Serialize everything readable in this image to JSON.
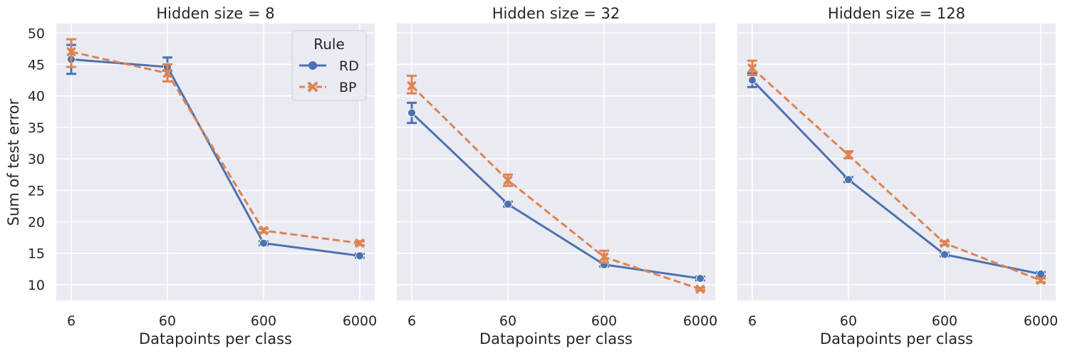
{
  "chart_data": {
    "type": "line",
    "ylabel": "Sum of test error",
    "xlabel": "Datapoints per class",
    "x_categories": [
      "6",
      "60",
      "600",
      "6000"
    ],
    "y_ticks": [
      10,
      15,
      20,
      25,
      30,
      35,
      40,
      45,
      50
    ],
    "ylim": [
      7.5,
      51.5
    ],
    "grid": true,
    "legend": {
      "title": "Rule",
      "placement": "top-right of first panel",
      "entries": [
        "RD",
        "BP"
      ]
    },
    "colors": {
      "RD": "#4c72b0",
      "BP": "#dd8452",
      "panel_bg": "#eaeaf2"
    },
    "panels": [
      {
        "title": "Hidden size = 8",
        "series": [
          {
            "name": "RD",
            "style": "solid",
            "marker": "circle",
            "values": [
              45.8,
              44.6,
              16.6,
              14.6
            ],
            "err_low": [
              43.5,
              44.0,
              16.3,
              14.3
            ],
            "err_high": [
              48.1,
              46.1,
              16.9,
              14.9
            ]
          },
          {
            "name": "BP",
            "style": "dashed",
            "marker": "x",
            "values": [
              47.0,
              43.6,
              18.6,
              16.6
            ],
            "err_low": [
              44.6,
              42.3,
              18.3,
              16.3
            ],
            "err_high": [
              49.0,
              45.0,
              18.9,
              16.9
            ]
          }
        ]
      },
      {
        "title": "Hidden size = 32",
        "series": [
          {
            "name": "RD",
            "style": "solid",
            "marker": "circle",
            "values": [
              37.3,
              22.8,
              13.2,
              11.0
            ],
            "err_low": [
              35.7,
              22.4,
              12.9,
              10.7
            ],
            "err_high": [
              38.9,
              23.2,
              13.5,
              11.3
            ]
          },
          {
            "name": "BP",
            "style": "dashed",
            "marker": "x",
            "values": [
              41.6,
              26.6,
              14.4,
              9.3
            ],
            "err_low": [
              40.4,
              25.7,
              13.5,
              9.1
            ],
            "err_high": [
              43.2,
              27.5,
              15.4,
              9.5
            ]
          }
        ]
      },
      {
        "title": "Hidden size = 128",
        "series": [
          {
            "name": "RD",
            "style": "solid",
            "marker": "circle",
            "values": [
              42.5,
              26.7,
              14.8,
              11.7
            ],
            "err_low": [
              41.4,
              26.3,
              14.5,
              11.4
            ],
            "err_high": [
              43.6,
              27.1,
              15.1,
              12.0
            ]
          },
          {
            "name": "BP",
            "style": "dashed",
            "marker": "x",
            "values": [
              44.4,
              30.6,
              16.6,
              10.7
            ],
            "err_low": [
              43.3,
              30.1,
              16.3,
              10.4
            ],
            "err_high": [
              45.6,
              31.2,
              16.9,
              11.0
            ]
          }
        ]
      }
    ]
  }
}
